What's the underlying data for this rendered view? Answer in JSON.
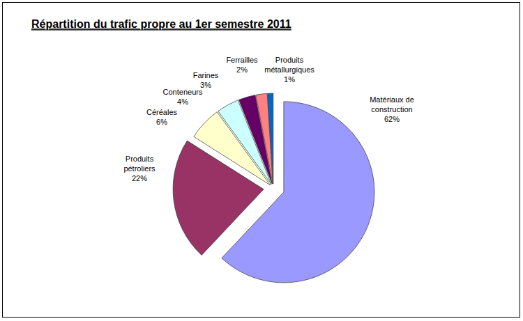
{
  "chart_data": {
    "type": "pie",
    "title": "Répartition du trafic propre au 1er semestre 2011",
    "categories": [
      "Matériaux de construction",
      "Produits pétroliers",
      "Céréales",
      "Conteneurs",
      "Farines",
      "Ferrailles",
      "Produits métallurgiques"
    ],
    "values": [
      62,
      22,
      6,
      4,
      3,
      2,
      1
    ],
    "value_labels": [
      "62%",
      "22%",
      "6%",
      "4%",
      "3%",
      "2%",
      "1%"
    ],
    "colors": [
      "#9999ff",
      "#993366",
      "#ffffcc",
      "#ccffff",
      "#660066",
      "#ff8080",
      "#0066cc"
    ],
    "data_labels": true
  }
}
